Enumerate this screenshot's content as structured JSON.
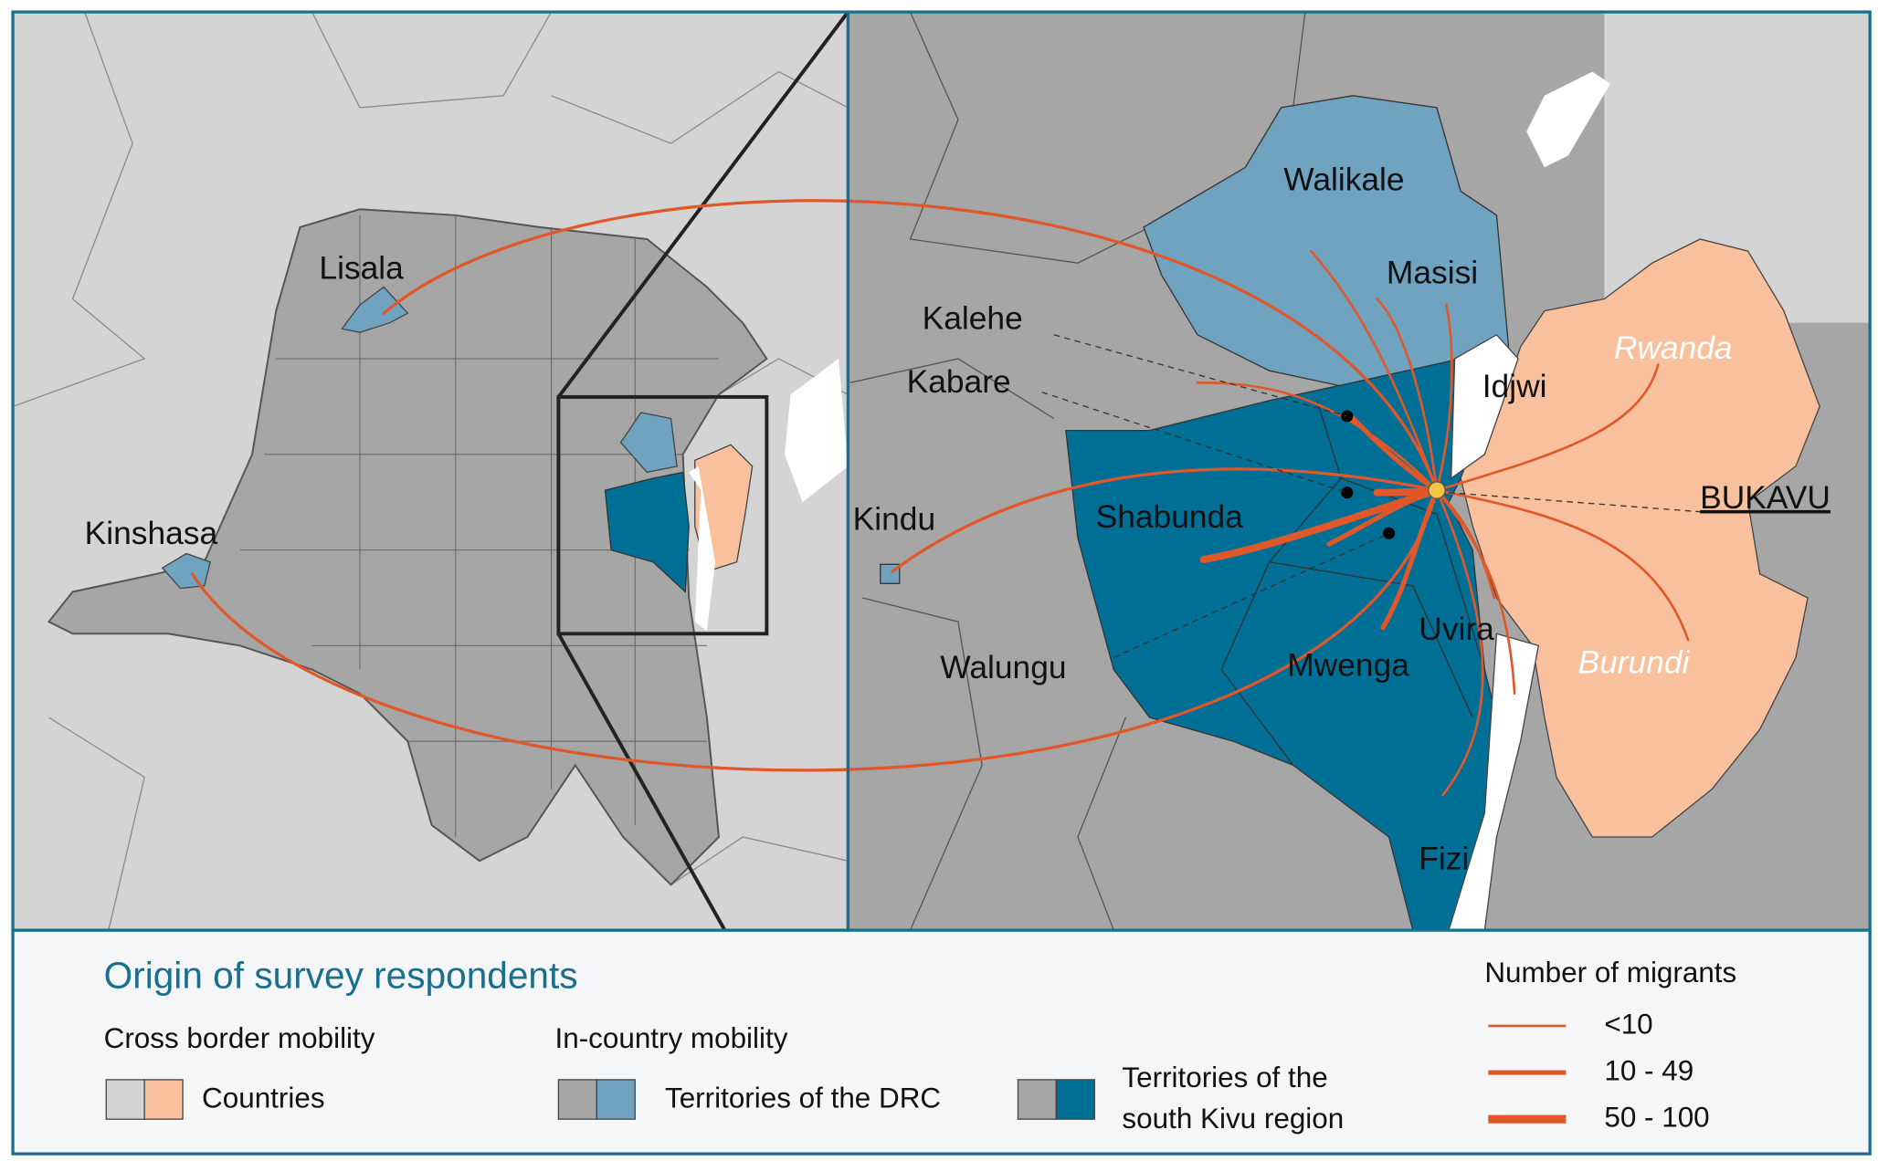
{
  "left_map": {
    "labels": [
      "Lisala",
      "Kinshasa"
    ]
  },
  "right_map": {
    "labels": [
      "Walikale",
      "Masisi",
      "Kalehe",
      "Kabare",
      "Idjwi",
      "Kindu",
      "Shabunda",
      "Uvira",
      "Walungu",
      "Mwenga",
      "Fizi"
    ],
    "countries": [
      "Rwanda",
      "Burundi"
    ],
    "city": "BUKAVU"
  },
  "legend": {
    "title": "Origin of survey respondents",
    "cross_border": {
      "heading": "Cross border mobility",
      "item": "Countries"
    },
    "in_country": {
      "heading": "In-country mobility",
      "items": [
        "Territories of the DRC",
        [
          "Territories of the",
          "south Kivu region"
        ]
      ]
    },
    "flows": {
      "title": "Number of migrants",
      "classes": [
        "<10",
        "10 - 49",
        "50 - 100"
      ]
    }
  }
}
